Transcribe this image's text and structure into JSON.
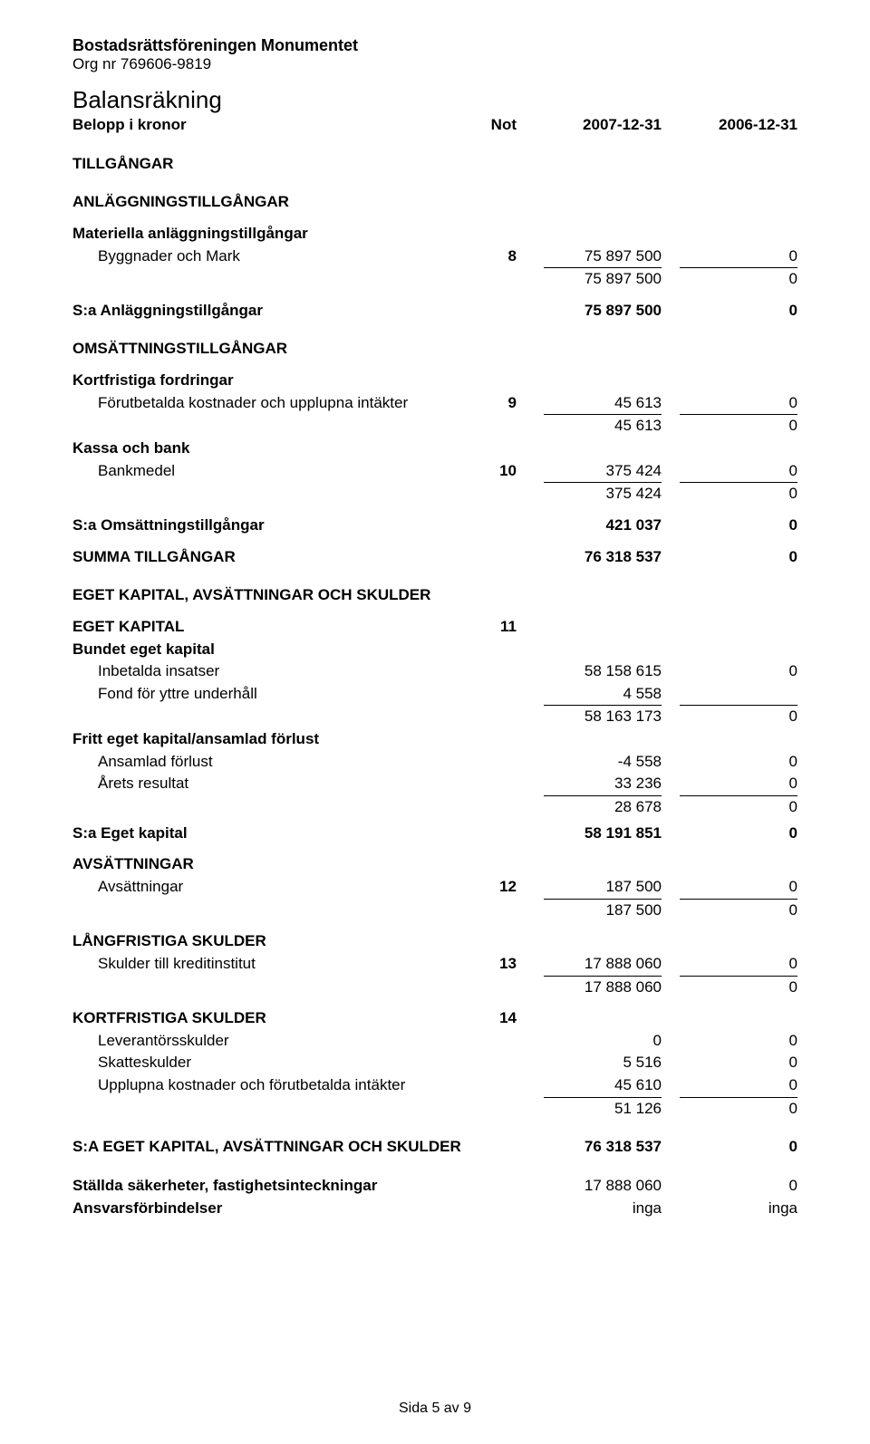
{
  "header": {
    "org_name": "Bostadsrättsföreningen Monumentet",
    "org_nr_label": "Org nr 769606-9819",
    "doc_title": "Balansräkning"
  },
  "col_header": {
    "left": "Belopp i kronor",
    "note": "Not",
    "c1": "2007-12-31",
    "c2": "2006-12-31"
  },
  "s": {
    "tillgangar": "TILLGÅNGAR",
    "anl_tillg": "ANLÄGGNINGSTILLGÅNGAR",
    "mat_anl": "Materiella anläggningstillgångar",
    "bygg_mark": "Byggnader och Mark",
    "bygg_note": "8",
    "bygg_v1": "75 897 500",
    "bygg_v2": "0",
    "bygg_sum1": "75 897 500",
    "bygg_sum2": "0",
    "sa_anl": "S:a Anläggningstillgångar",
    "sa_anl_v1": "75 897 500",
    "sa_anl_v2": "0",
    "oms_tillg": "OMSÄTTNINGSTILLGÅNGAR",
    "kort_fordr": "Kortfristiga fordringar",
    "forut_kost": "Förutbetalda kostnader och upplupna intäkter",
    "forut_note": "9",
    "forut_v1": "45 613",
    "forut_v2": "0",
    "forut_sum1": "45 613",
    "forut_sum2": "0",
    "kassa": "Kassa och bank",
    "bankmedel": "Bankmedel",
    "bank_note": "10",
    "bank_v1": "375 424",
    "bank_v2": "0",
    "bank_sum1": "375 424",
    "bank_sum2": "0",
    "sa_oms": "S:a Omsättningstillgångar",
    "sa_oms_v1": "421 037",
    "sa_oms_v2": "0",
    "summa_tillg": "SUMMA TILLGÅNGAR",
    "summa_tillg_v1": "76 318 537",
    "summa_tillg_v2": "0",
    "ek_avs_sk": "EGET KAPITAL, AVSÄTTNINGAR OCH SKULDER",
    "ek": "EGET KAPITAL",
    "ek_note": "11",
    "bundet": "Bundet eget kapital",
    "inbet": "Inbetalda insatser",
    "inbet_v1": "58 158 615",
    "inbet_v2": "0",
    "fond": "Fond för yttre underhåll",
    "fond_v1": "4 558",
    "bundet_sum1": "58 163 173",
    "bundet_sum2": "0",
    "fritt": "Fritt eget kapital/ansamlad förlust",
    "ansamlad": "Ansamlad förlust",
    "ansamlad_v1": "-4 558",
    "ansamlad_v2": "0",
    "arets": "Årets resultat",
    "arets_v1": "33 236",
    "arets_v2": "0",
    "fritt_sum1": "28 678",
    "fritt_sum2": "0",
    "sa_ek": "S:a Eget kapital",
    "sa_ek_v1": "58 191 851",
    "sa_ek_v2": "0",
    "avs": "AVSÄTTNINGAR",
    "avs_row": "Avsättningar",
    "avs_note": "12",
    "avs_v1": "187 500",
    "avs_v2": "0",
    "avs_sum1": "187 500",
    "avs_sum2": "0",
    "lang_sk": "LÅNGFRISTIGA SKULDER",
    "sk_kredit": "Skulder till kreditinstitut",
    "sk_note": "13",
    "sk_v1": "17 888 060",
    "sk_v2": "0",
    "sk_sum1": "17 888 060",
    "sk_sum2": "0",
    "kort_sk": "KORTFRISTIGA SKULDER",
    "kort_note": "14",
    "lev": "Leverantörsskulder",
    "lev_v1": "0",
    "lev_v2": "0",
    "skatt": "Skatteskulder",
    "skatt_v1": "5 516",
    "skatt_v2": "0",
    "uppl": "Upplupna kostnader och förutbetalda intäkter",
    "uppl_v1": "45 610",
    "uppl_v2": "0",
    "kort_sum1": "51 126",
    "kort_sum2": "0",
    "sa_all": "S:A EGET KAPITAL, AVSÄTTNINGAR OCH SKULDER",
    "sa_all_v1": "76 318 537",
    "sa_all_v2": "0",
    "stallda": "Ställda säkerheter, fastighetsinteckningar",
    "stallda_v1": "17 888 060",
    "stallda_v2": "0",
    "ansvar": "Ansvarsförbindelser",
    "ansvar_v1": "inga",
    "ansvar_v2": "inga"
  },
  "footer": {
    "text": "Sida 5 av 9"
  }
}
